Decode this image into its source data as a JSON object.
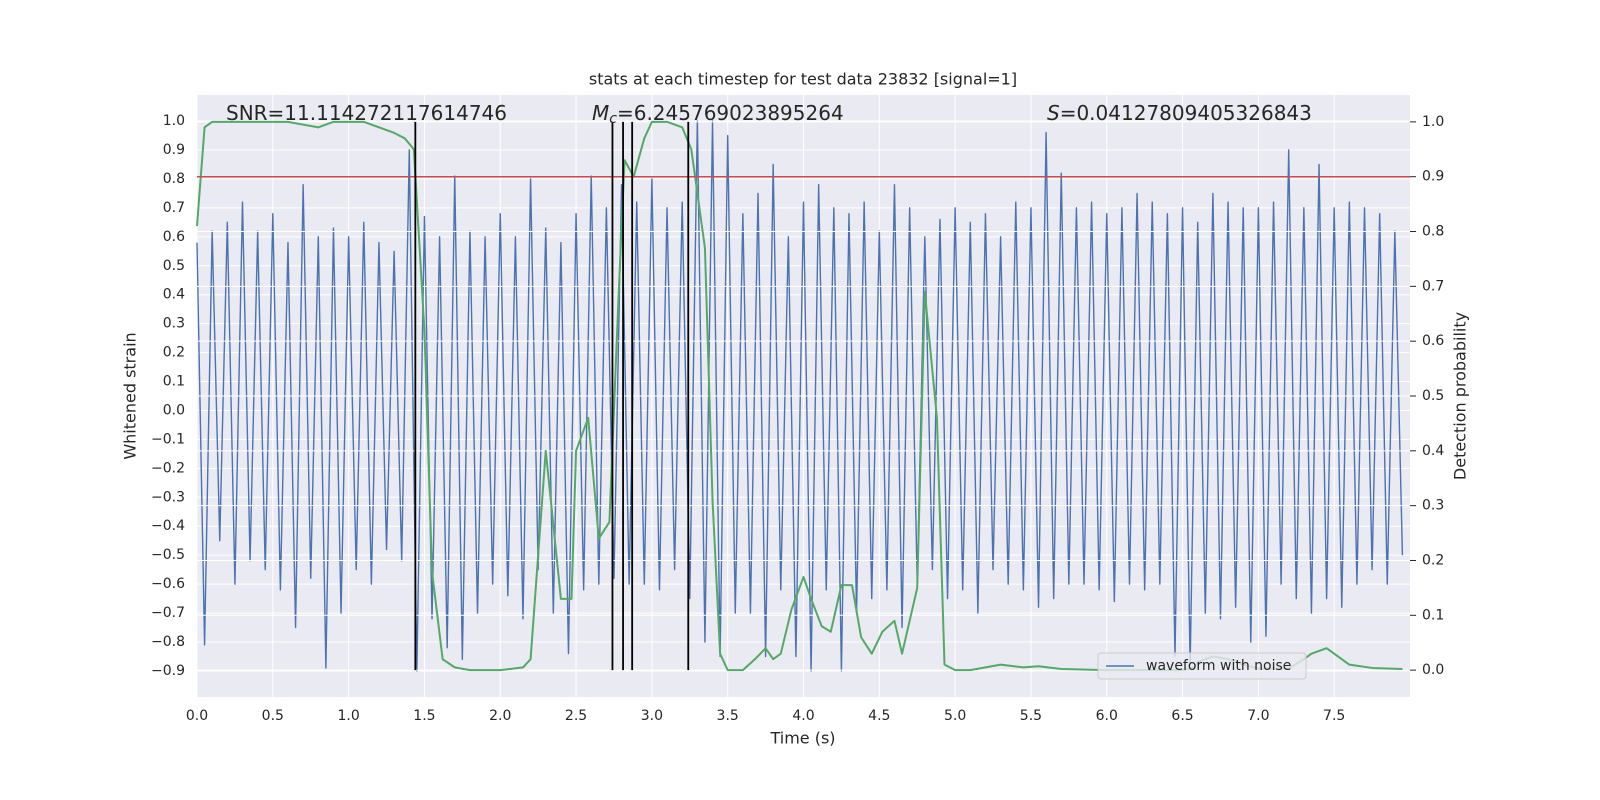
{
  "chart_data": {
    "type": "line",
    "title": "stats at each timestep for test data 23832 [signal=1]",
    "xlabel": "Time (s)",
    "ylabel": "Whitened strain",
    "y2label": "Detection probability",
    "xlim": [
      0,
      8.0
    ],
    "ylim": [
      -0.99,
      1.09
    ],
    "y2lim": [
      -0.049,
      1.049
    ],
    "xticks": [
      {
        "value": 0,
        "label": "0.0"
      },
      0.5,
      {
        "value": 1,
        "label": "1.0"
      },
      1.5,
      {
        "value": 2,
        "label": "2.0"
      },
      2.5,
      {
        "value": 3,
        "label": "3.0"
      },
      3.5,
      {
        "value": 4,
        "label": "4.0"
      },
      4.5,
      {
        "value": 5,
        "label": "5.0"
      },
      5.5,
      {
        "value": 6,
        "label": "6.0"
      },
      6.5,
      {
        "value": 7,
        "label": "7.0"
      },
      7.5
    ],
    "yticks": [
      {
        "value": -0.9,
        "label": "−0.9"
      },
      {
        "value": -0.8,
        "label": "−0.8"
      },
      {
        "value": -0.7,
        "label": "−0.7"
      },
      {
        "value": -0.6,
        "label": "−0.6"
      },
      {
        "value": -0.5,
        "label": "−0.5"
      },
      {
        "value": -0.4,
        "label": "−0.4"
      },
      {
        "value": -0.3,
        "label": "−0.3"
      },
      {
        "value": -0.2,
        "label": "−0.2"
      },
      {
        "value": -0.1,
        "label": "−0.1"
      },
      {
        "value": 0,
        "label": "0.0"
      },
      0.1,
      0.2,
      0.3,
      0.4,
      0.5,
      0.6,
      0.7,
      0.8,
      0.9,
      {
        "value": 1,
        "label": "1.0"
      }
    ],
    "y2ticks": [
      {
        "value": 0,
        "label": "0.0"
      },
      0.1,
      0.2,
      0.3,
      0.4,
      0.5,
      0.6,
      0.7,
      0.8,
      0.9,
      {
        "value": 1,
        "label": "1.0"
      }
    ],
    "grid": true,
    "legend": "lower right",
    "series": [
      {
        "name": "waveform with noise",
        "color": "#4c72b0",
        "x": [
          0,
          0.05,
          0.1,
          0.15,
          0.2,
          0.25,
          0.3,
          0.35,
          0.4,
          0.45,
          0.5,
          0.55,
          0.6,
          0.65,
          0.7,
          0.75,
          0.8,
          0.85,
          0.9,
          0.95,
          1.0,
          1.05,
          1.1,
          1.15,
          1.2,
          1.25,
          1.3,
          1.35,
          1.4,
          1.45,
          1.5,
          1.55,
          1.6,
          1.65,
          1.7,
          1.75,
          1.8,
          1.85,
          1.9,
          1.95,
          2.0,
          2.05,
          2.1,
          2.15,
          2.2,
          2.25,
          2.3,
          2.35,
          2.4,
          2.45,
          2.5,
          2.55,
          2.6,
          2.65,
          2.7,
          2.75,
          2.8,
          2.85,
          2.9,
          2.95,
          3.0,
          3.05,
          3.1,
          3.15,
          3.2,
          3.25,
          3.3,
          3.35,
          3.4,
          3.45,
          3.5,
          3.55,
          3.6,
          3.65,
          3.7,
          3.75,
          3.8,
          3.85,
          3.9,
          3.95,
          4.0,
          4.05,
          4.1,
          4.15,
          4.2,
          4.25,
          4.3,
          4.35,
          4.4,
          4.45,
          4.5,
          4.55,
          4.6,
          4.65,
          4.7,
          4.75,
          4.8,
          4.85,
          4.9,
          4.95,
          5.0,
          5.05,
          5.1,
          5.15,
          5.2,
          5.25,
          5.3,
          5.35,
          5.4,
          5.45,
          5.5,
          5.55,
          5.6,
          5.65,
          5.7,
          5.75,
          5.8,
          5.85,
          5.9,
          5.95,
          6.0,
          6.05,
          6.1,
          6.15,
          6.2,
          6.25,
          6.3,
          6.35,
          6.4,
          6.45,
          6.5,
          6.55,
          6.6,
          6.65,
          6.7,
          6.75,
          6.8,
          6.85,
          6.9,
          6.95,
          7.0,
          7.05,
          7.1,
          7.15,
          7.2,
          7.25,
          7.3,
          7.35,
          7.4,
          7.45,
          7.5,
          7.55,
          7.6,
          7.65,
          7.7,
          7.75,
          7.8,
          7.85,
          7.9,
          7.95
        ],
        "values": [
          0.58,
          -0.81,
          0.62,
          -0.45,
          0.65,
          -0.6,
          0.72,
          -0.52,
          0.62,
          -0.55,
          0.68,
          -0.62,
          0.58,
          -0.75,
          0.78,
          -0.58,
          0.6,
          -0.89,
          0.63,
          -0.7,
          0.6,
          -0.55,
          0.65,
          -0.6,
          0.58,
          -0.48,
          0.55,
          -0.52,
          0.9,
          -0.9,
          0.67,
          -0.72,
          0.6,
          -0.82,
          0.81,
          -0.86,
          0.62,
          -0.7,
          0.6,
          -0.6,
          0.68,
          -0.64,
          0.6,
          -0.72,
          0.8,
          -0.55,
          0.63,
          -0.7,
          0.58,
          -0.84,
          0.68,
          -0.62,
          0.81,
          -0.6,
          0.7,
          -0.58,
          0.78,
          -0.6,
          0.72,
          -0.6,
          0.8,
          -0.62,
          0.7,
          -0.55,
          0.72,
          -0.65,
          1.0,
          -0.8,
          1.0,
          -0.85,
          0.95,
          -0.7,
          0.68,
          -0.7,
          0.75,
          -0.85,
          0.85,
          -0.62,
          0.6,
          -0.85,
          0.72,
          -0.9,
          0.78,
          -0.62,
          0.7,
          -0.9,
          0.68,
          -0.7,
          0.72,
          -0.65,
          0.62,
          -0.62,
          0.78,
          -0.75,
          0.7,
          -0.6,
          0.6,
          -0.55,
          0.66,
          -0.65,
          0.7,
          -0.62,
          0.65,
          -0.7,
          0.68,
          -0.55,
          0.6,
          -0.6,
          0.72,
          -0.62,
          0.7,
          -0.68,
          0.96,
          -0.65,
          0.82,
          -0.6,
          0.7,
          -0.6,
          0.72,
          -0.62,
          0.68,
          -0.66,
          0.7,
          -0.6,
          0.75,
          -0.62,
          0.72,
          -0.6,
          0.68,
          -0.85,
          0.7,
          -0.88,
          0.65,
          -0.7,
          0.75,
          -0.72,
          0.72,
          -0.68,
          0.7,
          -0.8,
          0.7,
          -0.78,
          0.72,
          -0.6,
          0.9,
          -0.65,
          0.7,
          -0.7,
          0.85,
          -0.65,
          0.7,
          -0.68,
          0.72,
          -0.6,
          0.7,
          -0.55,
          0.68,
          -0.6,
          0.62,
          -0.5
        ]
      },
      {
        "color": "#55a868",
        "axis": "y2",
        "x": [
          0,
          0.05,
          0.1,
          0.2,
          0.4,
          0.6,
          0.8,
          0.9,
          1.0,
          1.1,
          1.2,
          1.3,
          1.37,
          1.43,
          1.5,
          1.55,
          1.62,
          1.7,
          1.8,
          2.0,
          2.15,
          2.2,
          2.3,
          2.4,
          2.47,
          2.5,
          2.58,
          2.65,
          2.72,
          2.78,
          2.82,
          2.88,
          2.95,
          3.0,
          3.1,
          3.2,
          3.26,
          3.35,
          3.4,
          3.45,
          3.5,
          3.6,
          3.68,
          3.75,
          3.8,
          3.85,
          3.92,
          4.0,
          4.05,
          4.12,
          4.18,
          4.25,
          4.32,
          4.38,
          4.45,
          4.52,
          4.6,
          4.65,
          4.75,
          4.8,
          4.88,
          4.93,
          5.0,
          5.1,
          5.3,
          5.45,
          5.55,
          5.7,
          6.0,
          6.5,
          6.58,
          6.6,
          6.7,
          6.8,
          6.9,
          7.0,
          7.2,
          7.3,
          7.35,
          7.45,
          7.55,
          7.6,
          7.75,
          7.95
        ],
        "values": [
          0.81,
          0.99,
          1.0,
          1.0,
          1.0,
          1.0,
          0.99,
          1.0,
          1.0,
          1.0,
          0.99,
          0.98,
          0.97,
          0.95,
          0.62,
          0.18,
          0.02,
          0.005,
          0,
          0,
          0.005,
          0.02,
          0.4,
          0.13,
          0.13,
          0.4,
          0.46,
          0.24,
          0.27,
          0.68,
          0.93,
          0.9,
          0.97,
          1.0,
          1.0,
          0.99,
          0.95,
          0.77,
          0.31,
          0.03,
          0,
          0,
          0.02,
          0.04,
          0.02,
          0.03,
          0.11,
          0.17,
          0.13,
          0.08,
          0.07,
          0.155,
          0.155,
          0.06,
          0.03,
          0.07,
          0.09,
          0.03,
          0.15,
          0.69,
          0.46,
          0.01,
          0,
          0,
          0.01,
          0.005,
          0.007,
          0.002,
          0,
          0,
          0.005,
          0.015,
          0.025,
          0.02,
          0.01,
          0.003,
          0.003,
          0.02,
          0.03,
          0.04,
          0.02,
          0.01,
          0.004,
          0.002
        ]
      }
    ],
    "hlines": [
      {
        "y": 0.9,
        "axis": "y2",
        "color": "#c44e52"
      }
    ],
    "vlines": {
      "x": [
        1.44,
        2.74,
        2.81,
        2.87,
        3.24
      ],
      "color": "#000000"
    },
    "annotations": [
      {
        "text": "SNR=11.114272117614746"
      },
      {
        "symbol": "M",
        "subscript": "c",
        "text": "=6.245769023895264"
      },
      {
        "symbol": "S",
        "text": "=0.04127809405326843"
      }
    ]
  }
}
